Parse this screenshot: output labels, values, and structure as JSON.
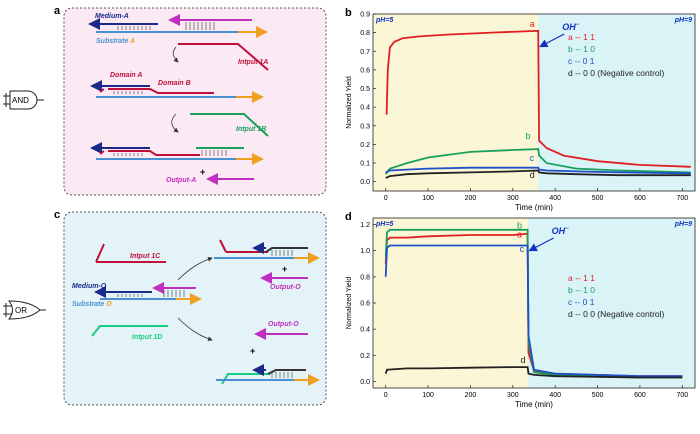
{
  "panels": {
    "a": {
      "letter": "a",
      "gate": "AND",
      "labels": {
        "medium": "Medium-A",
        "substrate_prefix": "Substrate ",
        "substrate_suffix": "A",
        "intput1": "Intput 1A",
        "domainA": "Domain A",
        "domainB": "Domain B",
        "intput2": "Intput 1B",
        "output": "Output-A",
        "plus": "+"
      }
    },
    "c": {
      "letter": "c",
      "gate": "OR",
      "labels": {
        "intput1": "Intput 1C",
        "medium": "Medium-O",
        "substrate_prefix": "Substrate ",
        "substrate_suffix": "O",
        "intput2": "Intput 1D",
        "output_top": "Output-O",
        "output_bottom": "Output-O",
        "plus_top": "+",
        "plus_bottom": "+"
      }
    }
  },
  "chart_data": [
    {
      "panel": "b",
      "type": "line",
      "xlabel": "Time (min)",
      "ylabel": "Normalized Yield",
      "xlim": [
        -30,
        730
      ],
      "ylim": [
        -0.05,
        0.9
      ],
      "xticks": [
        0,
        100,
        200,
        300,
        400,
        500,
        600,
        700
      ],
      "yticks": [
        0.0,
        0.1,
        0.2,
        0.3,
        0.4,
        0.5,
        0.6,
        0.7,
        0.8,
        0.9
      ],
      "region_left": "pH=5",
      "region_right": "pH=9",
      "switch_time": 360,
      "annotation": "OH",
      "annotation_sup": "−",
      "legend": [
        "a -- 1 1",
        "b -- 1 0",
        "c -- 0 1",
        "d -- 0 0 (Negative control)"
      ],
      "series": [
        {
          "name": "a",
          "color": "#e02020",
          "x": [
            2,
            5,
            10,
            20,
            40,
            80,
            150,
            250,
            360,
            362,
            380,
            420,
            500,
            600,
            720
          ],
          "y": [
            0.36,
            0.6,
            0.72,
            0.75,
            0.77,
            0.78,
            0.79,
            0.8,
            0.81,
            0.22,
            0.18,
            0.14,
            0.11,
            0.09,
            0.08
          ]
        },
        {
          "name": "b",
          "color": "#1aa05a",
          "x": [
            0,
            10,
            50,
            100,
            200,
            300,
            360,
            362,
            380,
            450,
            550,
            720
          ],
          "y": [
            0.04,
            0.07,
            0.1,
            0.13,
            0.16,
            0.17,
            0.175,
            0.14,
            0.1,
            0.07,
            0.06,
            0.05
          ]
        },
        {
          "name": "c",
          "color": "#1e50c8",
          "x": [
            0,
            10,
            50,
            100,
            200,
            300,
            360,
            362,
            380,
            450,
            550,
            720
          ],
          "y": [
            0.05,
            0.06,
            0.065,
            0.07,
            0.075,
            0.075,
            0.075,
            0.065,
            0.06,
            0.055,
            0.05,
            0.045
          ]
        },
        {
          "name": "d",
          "color": "#222222",
          "x": [
            0,
            10,
            50,
            100,
            200,
            300,
            360,
            362,
            380,
            450,
            550,
            720
          ],
          "y": [
            0.02,
            0.03,
            0.04,
            0.045,
            0.05,
            0.055,
            0.06,
            0.05,
            0.045,
            0.04,
            0.035,
            0.035
          ]
        }
      ]
    },
    {
      "panel": "d",
      "type": "line",
      "xlabel": "Time (min)",
      "ylabel": "Normalized Yield",
      "xlim": [
        -30,
        730
      ],
      "ylim": [
        -0.05,
        1.25
      ],
      "xticks": [
        0,
        100,
        200,
        300,
        400,
        500,
        600,
        700
      ],
      "yticks": [
        0.0,
        0.2,
        0.4,
        0.6,
        0.8,
        1.0,
        1.2
      ],
      "region_left": "pH=5",
      "region_right": "pH=9",
      "switch_time": 335,
      "annotation": "OH",
      "annotation_sup": "−",
      "legend": [
        "a -- 1 1",
        "b -- 1 0",
        "c -- 0 1",
        "d -- 0 0 (Negative control)"
      ],
      "series": [
        {
          "name": "a",
          "color": "#e02020",
          "x": [
            0,
            3,
            10,
            50,
            100,
            200,
            300,
            335,
            337,
            350,
            400,
            500,
            600,
            700
          ],
          "y": [
            0.9,
            1.08,
            1.1,
            1.1,
            1.11,
            1.12,
            1.12,
            1.13,
            0.22,
            0.08,
            0.06,
            0.05,
            0.04,
            0.04
          ]
        },
        {
          "name": "b",
          "color": "#1aa05a",
          "x": [
            0,
            3,
            10,
            50,
            100,
            200,
            300,
            335,
            337,
            350,
            400,
            500,
            600,
            700
          ],
          "y": [
            0.95,
            1.14,
            1.16,
            1.16,
            1.16,
            1.16,
            1.16,
            1.16,
            0.3,
            0.07,
            0.05,
            0.04,
            0.03,
            0.03
          ]
        },
        {
          "name": "c",
          "color": "#1e50c8",
          "x": [
            0,
            3,
            10,
            50,
            100,
            200,
            300,
            335,
            337,
            350,
            400,
            500,
            600,
            700
          ],
          "y": [
            0.8,
            1.02,
            1.04,
            1.04,
            1.04,
            1.04,
            1.04,
            1.04,
            0.35,
            0.09,
            0.06,
            0.05,
            0.04,
            0.04
          ]
        },
        {
          "name": "d",
          "color": "#222222",
          "x": [
            0,
            3,
            50,
            100,
            200,
            300,
            335,
            337,
            350,
            400,
            500,
            600,
            700
          ],
          "y": [
            0.06,
            0.09,
            0.1,
            0.1,
            0.105,
            0.11,
            0.11,
            0.06,
            0.05,
            0.04,
            0.035,
            0.03,
            0.03
          ]
        }
      ]
    }
  ]
}
